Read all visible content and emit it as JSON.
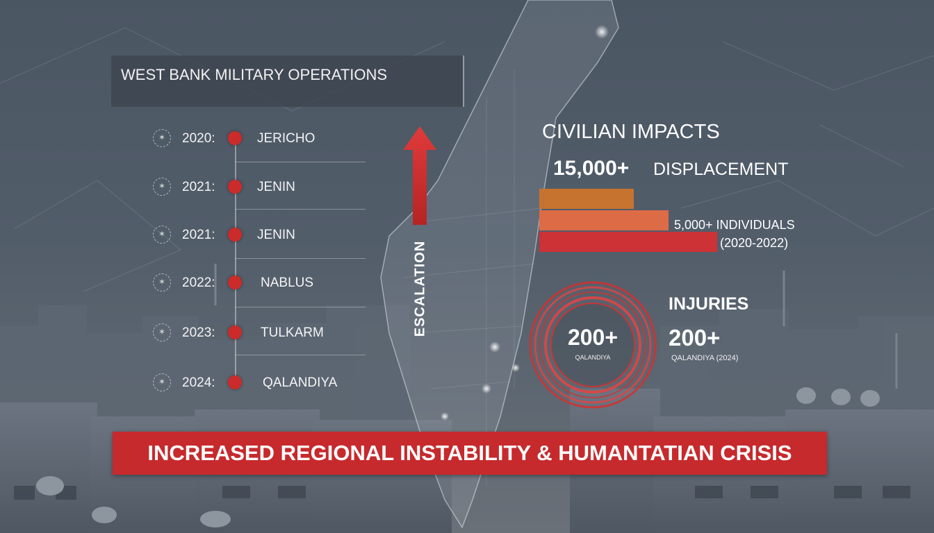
{
  "colors": {
    "accent_red": "#c62a2d",
    "dot_red": "#cc2b2b",
    "bar_orange_dark": "#c6732f",
    "bar_orange": "#dc6b46",
    "bar_red": "#cc3236"
  },
  "title": "WEST BANK MILITARY OPERATIONS",
  "timeline": [
    {
      "year": "2020:",
      "place": "JERICHO",
      "icon": "emblem-icon"
    },
    {
      "year": "2021:",
      "place": "JENIN",
      "icon": "emblem-icon"
    },
    {
      "year": "2021:",
      "place": "JENIN",
      "icon": "emblem-icon"
    },
    {
      "year": "2022:",
      "place": "NABLUS",
      "icon": "emblem-icon"
    },
    {
      "year": "2023:",
      "place": "TULKARM",
      "icon": "emblem-icon"
    },
    {
      "year": "2024:",
      "place": "QALANDIYA",
      "icon": "emblem-icon"
    }
  ],
  "escalation": {
    "label": "ESCALATION",
    "icon": "arrow-up-icon"
  },
  "civilian": {
    "title": "CIVILIAN IMPACTS",
    "big_value": "15,000+",
    "big_label": "DISPLACEMENT",
    "note1": "5,000+ INDIVIDUALS",
    "note2": "(2020-2022)"
  },
  "chart_data": {
    "type": "bar",
    "categories": [
      "",
      "",
      ""
    ],
    "values": [
      136,
      186,
      256
    ],
    "title": "",
    "xlabel": "",
    "ylabel": ""
  },
  "injuries": {
    "ring_value": "200+",
    "ring_caption": "QALANDIYA",
    "title": "INJURIES",
    "value": "200+",
    "caption": "QALANDIYA (2024)"
  },
  "banner": "INCREASED REGIONAL INSTABILITY & HUMANTATIAN CRISIS"
}
